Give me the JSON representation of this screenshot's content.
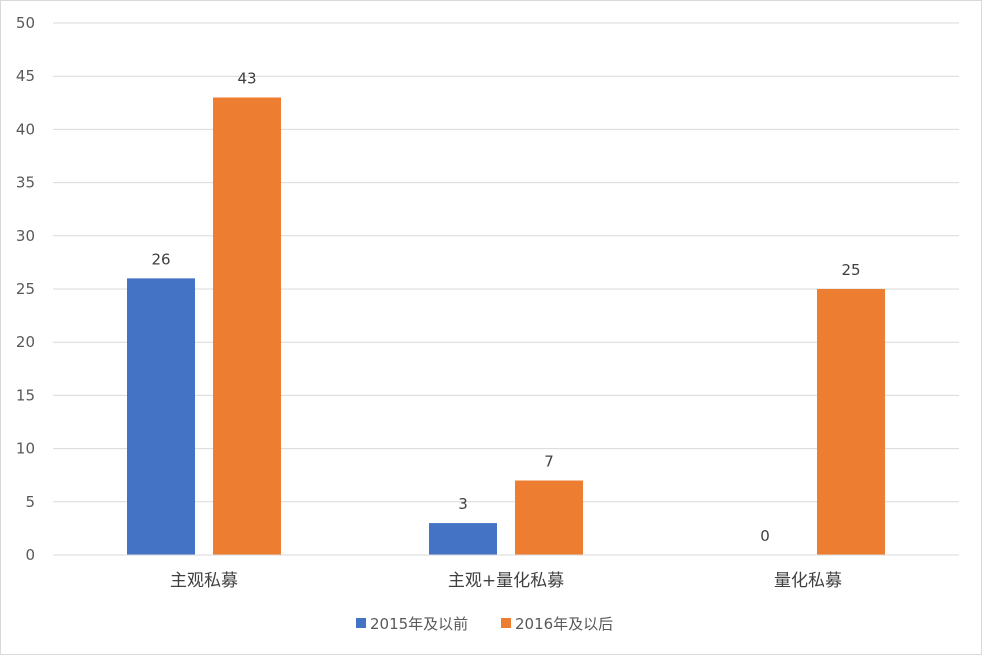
{
  "chart_data": {
    "type": "bar",
    "categories": [
      "主观私募",
      "主观+量化私募",
      "量化私募"
    ],
    "series": [
      {
        "name": "2015年及以前",
        "values": [
          26,
          3,
          0
        ],
        "color": "#4472C4"
      },
      {
        "name": "2016年及以后",
        "values": [
          43,
          7,
          25
        ],
        "color": "#ED7D31"
      }
    ],
    "ylim": [
      0,
      50
    ],
    "yticks": [
      0,
      5,
      10,
      15,
      20,
      25,
      30,
      35,
      40,
      45,
      50
    ],
    "grid": true,
    "legend_position": "bottom",
    "data_labels": true
  }
}
